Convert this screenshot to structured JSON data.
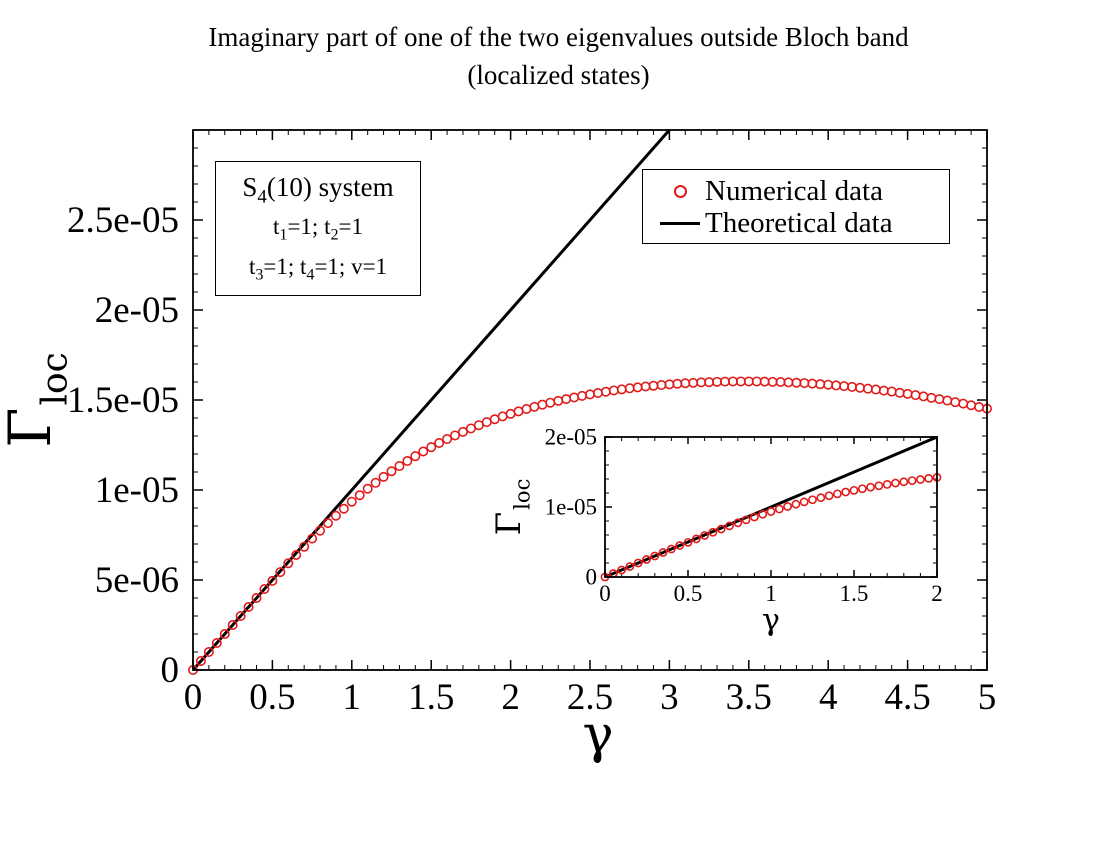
{
  "title": {
    "line1": "Imaginary part of one of the two eigenvalues outside Bloch band",
    "line2": "(localized states)"
  },
  "chart_data": [
    {
      "type": "scatter",
      "role": "main",
      "xlabel": "γ",
      "ylabel": "Γ",
      "ylabel_sub": "loc",
      "xlim": [
        0,
        5
      ],
      "ylim": [
        0,
        3e-05
      ],
      "xticks": [
        {
          "v": 0,
          "label": "0"
        },
        {
          "v": 0.5,
          "label": "0.5"
        },
        {
          "v": 1,
          "label": "1"
        },
        {
          "v": 1.5,
          "label": "1.5"
        },
        {
          "v": 2,
          "label": "2"
        },
        {
          "v": 2.5,
          "label": "2.5"
        },
        {
          "v": 3,
          "label": "3"
        },
        {
          "v": 3.5,
          "label": "3.5"
        },
        {
          "v": 4,
          "label": "4"
        },
        {
          "v": 4.5,
          "label": "4.5"
        },
        {
          "v": 5,
          "label": "5"
        }
      ],
      "yticks": [
        {
          "v": 0,
          "label": "0"
        },
        {
          "v": 5e-06,
          "label": "5e-06"
        },
        {
          "v": 1e-05,
          "label": "1e-05"
        },
        {
          "v": 1.5e-05,
          "label": "1.5e-05"
        },
        {
          "v": 2e-05,
          "label": "2e-05"
        },
        {
          "v": 2.5e-05,
          "label": "2.5e-05"
        }
      ],
      "series": [
        {
          "name": "Numerical data",
          "style": "circles",
          "color": "#e11a1a",
          "x": [
            0,
            0.05,
            0.1,
            0.15,
            0.2,
            0.25,
            0.3,
            0.35,
            0.4,
            0.45,
            0.5,
            0.55,
            0.6,
            0.65,
            0.7,
            0.75,
            0.8,
            0.85,
            0.9,
            0.95,
            1,
            1.05,
            1.1,
            1.15,
            1.2,
            1.25,
            1.3,
            1.35,
            1.4,
            1.45,
            1.5,
            1.55,
            1.6,
            1.65,
            1.7,
            1.75,
            1.8,
            1.85,
            1.9,
            1.95,
            2,
            2.05,
            2.1,
            2.15,
            2.2,
            2.25,
            2.3,
            2.35,
            2.4,
            2.45,
            2.5,
            2.55,
            2.6,
            2.65,
            2.7,
            2.75,
            2.8,
            2.85,
            2.9,
            2.95,
            3,
            3.05,
            3.1,
            3.15,
            3.2,
            3.25,
            3.3,
            3.35,
            3.4,
            3.45,
            3.5,
            3.55,
            3.6,
            3.65,
            3.7,
            3.75,
            3.8,
            3.85,
            3.9,
            3.95,
            4,
            4.05,
            4.1,
            4.15,
            4.2,
            4.25,
            4.3,
            4.35,
            4.4,
            4.45,
            4.5,
            4.55,
            4.6,
            4.65,
            4.7,
            4.75,
            4.8,
            4.85,
            4.9,
            4.95,
            5
          ],
          "y": [
            0,
            5e-07,
            1e-06,
            1.5e-06,
            2e-06,
            2.5e-06,
            3e-06,
            3.5e-06,
            4e-06,
            4.5e-06,
            4.95e-06,
            5.44e-06,
            5.93e-06,
            6.39e-06,
            6.85e-06,
            7.3e-06,
            7.74e-06,
            8.16e-06,
            8.57e-06,
            8.96e-06,
            9.35e-06,
            9.71e-06,
            1.007e-05,
            1.04e-05,
            1.073e-05,
            1.104e-05,
            1.133e-05,
            1.161e-05,
            1.188e-05,
            1.214e-05,
            1.238e-05,
            1.261e-05,
            1.283e-05,
            1.303e-05,
            1.323e-05,
            1.342e-05,
            1.36e-05,
            1.377e-05,
            1.393e-05,
            1.409e-05,
            1.423e-05,
            1.437e-05,
            1.45e-05,
            1.462e-05,
            1.474e-05,
            1.485e-05,
            1.495e-05,
            1.505e-05,
            1.514e-05,
            1.523e-05,
            1.531e-05,
            1.539e-05,
            1.546e-05,
            1.553e-05,
            1.559e-05,
            1.565e-05,
            1.57e-05,
            1.575e-05,
            1.579e-05,
            1.583e-05,
            1.587e-05,
            1.59e-05,
            1.593e-05,
            1.595e-05,
            1.598e-05,
            1.599e-05,
            1.601e-05,
            1.602e-05,
            1.603e-05,
            1.603e-05,
            1.603e-05,
            1.603e-05,
            1.602e-05,
            1.601e-05,
            1.6e-05,
            1.598e-05,
            1.596e-05,
            1.594e-05,
            1.591e-05,
            1.588e-05,
            1.585e-05,
            1.581e-05,
            1.577e-05,
            1.573e-05,
            1.568e-05,
            1.563e-05,
            1.558e-05,
            1.552e-05,
            1.547e-05,
            1.54e-05,
            1.534e-05,
            1.527e-05,
            1.52e-05,
            1.512e-05,
            1.505e-05,
            1.497e-05,
            1.488e-05,
            1.48e-05,
            1.471e-05,
            1.461e-05,
            1.452e-05
          ]
        },
        {
          "name": "Theoretical data",
          "style": "line",
          "color": "#000000",
          "x": [
            0,
            3.0
          ],
          "y": [
            0,
            3e-05
          ]
        }
      ]
    },
    {
      "type": "scatter",
      "role": "inset",
      "xlabel": "γ",
      "ylabel": "Γ",
      "ylabel_sub": "loc",
      "xlim": [
        0,
        2
      ],
      "ylim": [
        0,
        2e-05
      ],
      "xticks": [
        {
          "v": 0,
          "label": "0"
        },
        {
          "v": 0.5,
          "label": "0.5"
        },
        {
          "v": 1,
          "label": "1"
        },
        {
          "v": 1.5,
          "label": "1.5"
        },
        {
          "v": 2,
          "label": "2"
        }
      ],
      "yticks": [
        {
          "v": 0,
          "label": "0"
        },
        {
          "v": 1e-05,
          "label": "1e-05"
        },
        {
          "v": 2e-05,
          "label": "2e-05"
        }
      ],
      "series": [
        {
          "name": "Numerical data",
          "style": "circles",
          "color": "#e11a1a",
          "x": [
            0,
            0.05,
            0.1,
            0.15,
            0.2,
            0.25,
            0.3,
            0.35,
            0.4,
            0.45,
            0.5,
            0.55,
            0.6,
            0.65,
            0.7,
            0.75,
            0.8,
            0.85,
            0.9,
            0.95,
            1,
            1.05,
            1.1,
            1.15,
            1.2,
            1.25,
            1.3,
            1.35,
            1.4,
            1.45,
            1.5,
            1.55,
            1.6,
            1.65,
            1.7,
            1.75,
            1.8,
            1.85,
            1.9,
            1.95,
            2
          ],
          "y": [
            0,
            5e-07,
            1e-06,
            1.5e-06,
            2e-06,
            2.5e-06,
            3e-06,
            3.5e-06,
            4e-06,
            4.5e-06,
            4.95e-06,
            5.44e-06,
            5.93e-06,
            6.39e-06,
            6.85e-06,
            7.3e-06,
            7.74e-06,
            8.16e-06,
            8.57e-06,
            8.96e-06,
            9.35e-06,
            9.71e-06,
            1.007e-05,
            1.04e-05,
            1.073e-05,
            1.104e-05,
            1.133e-05,
            1.161e-05,
            1.188e-05,
            1.214e-05,
            1.238e-05,
            1.261e-05,
            1.283e-05,
            1.303e-05,
            1.323e-05,
            1.342e-05,
            1.36e-05,
            1.377e-05,
            1.393e-05,
            1.409e-05,
            1.423e-05
          ]
        },
        {
          "name": "Theoretical data",
          "style": "line",
          "color": "#000000",
          "x": [
            0,
            2.0
          ],
          "y": [
            0,
            2e-05
          ]
        }
      ]
    }
  ],
  "legend": {
    "numerical_label": "Numerical data",
    "theoretical_label": "Theoretical data"
  },
  "info_box": {
    "system_prefix": "S",
    "system_sub": "4",
    "system_suffix": "(10) system",
    "t1_prefix": "t",
    "t1_sub": "1",
    "t1_value": "=1; ",
    "t2_prefix": "t",
    "t2_sub": "2",
    "t2_value": "=1",
    "t3_prefix": "t",
    "t3_sub": "3",
    "t3_value": "=1; ",
    "t4_prefix": "t",
    "t4_sub": "4",
    "t4_value": "=1; v=1"
  }
}
